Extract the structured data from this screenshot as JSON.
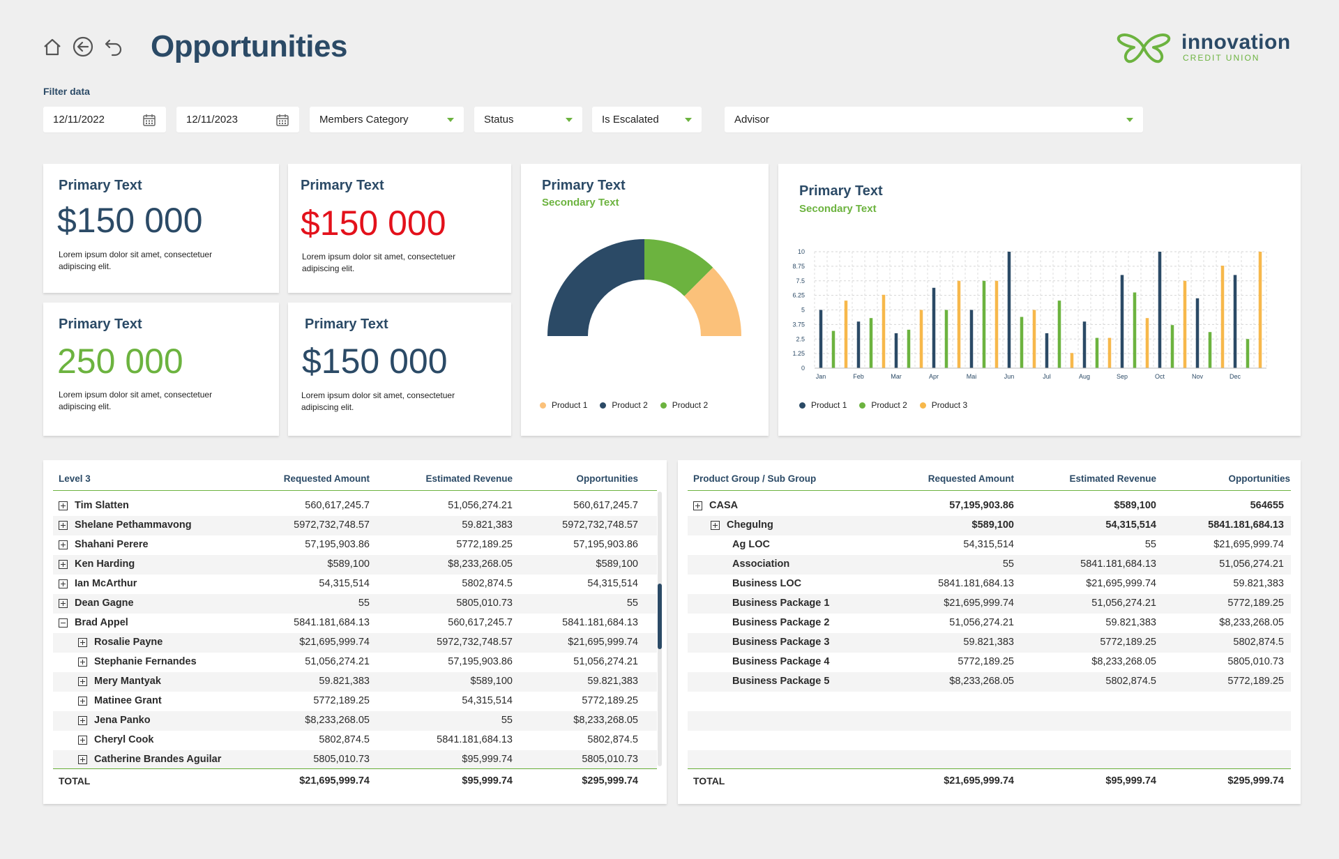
{
  "header": {
    "title": "Opportunities",
    "icons": [
      "home-icon",
      "back-icon",
      "undo-icon"
    ],
    "logo": {
      "name": "innovation",
      "sub": "CREDIT UNION"
    }
  },
  "filters": {
    "label": "Filter data",
    "date_from": "12/11/2022",
    "date_to": "12/11/2023",
    "members_category": "Members Category",
    "status": "Status",
    "is_escalated": "Is Escalated",
    "advisor": "Advisor"
  },
  "colors": {
    "navy": "#2b4a66",
    "green": "#6cb33f",
    "orange": "#f7b84b",
    "peach": "#fbc17a",
    "red": "#e3111b"
  },
  "kpis": [
    {
      "title": "Primary Text",
      "value": "$150 000",
      "desc": "Lorem ipsum dolor sit amet, consectetuer adipiscing elit.",
      "color": "#2b4a66"
    },
    {
      "title": "Primary Text",
      "value": "$150 000",
      "desc": "Lorem ipsum dolor sit amet, consectetuer adipiscing elit.",
      "color": "#e3111b"
    },
    {
      "title": "Primary Text",
      "value": "250 000",
      "desc": "Lorem ipsum dolor sit amet, consectetuer adipiscing elit.",
      "color": "#6cb33f"
    },
    {
      "title": "Primary Text",
      "value": "$150 000",
      "desc": "Lorem ipsum dolor sit amet, consectetuer adipiscing elit.",
      "color": "#2b4a66"
    }
  ],
  "donut": {
    "title": "Primary Text",
    "subtitle": "Secondary Text",
    "legend": [
      "Product 1",
      "Product 2",
      "Product 2"
    ]
  },
  "bar": {
    "title": "Primary Text",
    "subtitle": "Secondary Text",
    "legend": [
      "Product 1",
      "Product 2",
      "Product 3"
    ]
  },
  "chart_data": [
    {
      "type": "pie",
      "variant": "half-donut",
      "labels": [
        "Product 2",
        "Product 2",
        "Product 1"
      ],
      "values": [
        50,
        25,
        25
      ],
      "colors": [
        "#2b4a66",
        "#6cb33f",
        "#fbc17a"
      ]
    },
    {
      "type": "bar",
      "categories": [
        "Jan",
        "Feb",
        "Mar",
        "Apr",
        "Mai",
        "Jun",
        "Jul",
        "Aug",
        "Sep",
        "Oct",
        "Nov",
        "Dec"
      ],
      "ylim": [
        0,
        10
      ],
      "yticks": [
        "0",
        "1.25",
        "2.5",
        "3.75",
        "5",
        "6.25",
        "7.5",
        "8.75",
        "10"
      ],
      "grid": true,
      "series": [
        {
          "name": "Product 1",
          "color": "#2b4a66",
          "values": [
            5.0,
            4.0,
            3.0,
            6.9,
            5.0,
            10.0,
            3.0,
            4.0,
            8.0,
            10.0,
            6.0,
            8.0
          ]
        },
        {
          "name": "Product 2",
          "color": "#6cb33f",
          "values": [
            3.2,
            4.3,
            3.3,
            5.0,
            7.5,
            4.4,
            5.8,
            2.6,
            6.5,
            3.7,
            3.1,
            2.5
          ]
        },
        {
          "name": "Product 3",
          "color": "#f7b84b",
          "values": [
            5.8,
            6.3,
            5.0,
            7.5,
            7.5,
            5.0,
            1.3,
            2.6,
            4.3,
            7.5,
            8.8,
            10.0
          ]
        }
      ]
    }
  ],
  "table_left": {
    "headers": [
      "Level 3",
      "Requested Amount",
      "Estimated Revenue",
      "Opportunities"
    ],
    "rows": [
      {
        "name": "Tim Slatten",
        "level": 0,
        "toggle": "plus",
        "c1": "560,617,245.7",
        "c2": "51,056,274.21",
        "c3": "560,617,245.7"
      },
      {
        "name": "Shelane Pethammavong",
        "level": 0,
        "toggle": "plus",
        "c1": "5972,732,748.57",
        "c2": "59.821,383",
        "c3": "5972,732,748.57"
      },
      {
        "name": "Shahani Perere",
        "level": 0,
        "toggle": "plus",
        "c1": "57,195,903.86",
        "c2": "5772,189.25",
        "c3": "57,195,903.86"
      },
      {
        "name": "Ken Harding",
        "level": 0,
        "toggle": "plus",
        "c1": "$589,100",
        "c2": "$8,233,268.05",
        "c3": "$589,100"
      },
      {
        "name": "Ian McArthur",
        "level": 0,
        "toggle": "plus",
        "c1": "54,315,514",
        "c2": "5802,874.5",
        "c3": "54,315,514"
      },
      {
        "name": "Dean Gagne",
        "level": 0,
        "toggle": "plus",
        "c1": "55",
        "c2": "5805,010.73",
        "c3": "55"
      },
      {
        "name": "Brad Appel",
        "level": 0,
        "toggle": "minus",
        "c1": "5841.181,684.13",
        "c2": "560,617,245.7",
        "c3": "5841.181,684.13"
      },
      {
        "name": "Rosalie Payne",
        "level": 1,
        "toggle": "plus",
        "c1": "$21,695,999.74",
        "c2": "5972,732,748.57",
        "c3": "$21,695,999.74"
      },
      {
        "name": "Stephanie Fernandes",
        "level": 1,
        "toggle": "plus",
        "c1": "51,056,274.21",
        "c2": "57,195,903.86",
        "c3": "51,056,274.21"
      },
      {
        "name": "Mery Mantyak",
        "level": 1,
        "toggle": "plus",
        "c1": "59.821,383",
        "c2": "$589,100",
        "c3": "59.821,383"
      },
      {
        "name": "Matinee Grant",
        "level": 1,
        "toggle": "plus",
        "c1": "5772,189.25",
        "c2": "54,315,514",
        "c3": "5772,189.25"
      },
      {
        "name": "Jena Panko",
        "level": 1,
        "toggle": "plus",
        "c1": "$8,233,268.05",
        "c2": "55",
        "c3": "$8,233,268.05"
      },
      {
        "name": "Cheryl Cook",
        "level": 1,
        "toggle": "plus",
        "c1": "5802,874.5",
        "c2": "5841.181,684.13",
        "c3": "5802,874.5"
      },
      {
        "name": "Catherine Brandes Aguilar",
        "level": 1,
        "toggle": "plus",
        "c1": "5805,010.73",
        "c2": "$95,999.74",
        "c3": "5805,010.73"
      }
    ],
    "total": {
      "label": "TOTAL",
      "c1": "$21,695,999.74",
      "c2": "$95,999.74",
      "c3": "$295,999.74"
    }
  },
  "table_right": {
    "headers": [
      "Product Group / Sub Group",
      "Requested Amount",
      "Estimated Revenue",
      "Opportunities"
    ],
    "rows": [
      {
        "name": "CASA",
        "level": 0,
        "toggle": "plus",
        "bold": true,
        "c1": "57,195,903.86",
        "c2": "$589,100",
        "c3": "564655"
      },
      {
        "name": "Chegulng",
        "level": 1,
        "toggle": "plus",
        "bold": true,
        "c1": "$589,100",
        "c2": "54,315,514",
        "c3": "5841.181,684.13"
      },
      {
        "name": "Ag LOC",
        "level": 2,
        "toggle": "",
        "bold": false,
        "c1": "54,315,514",
        "c2": "55",
        "c3": "$21,695,999.74"
      },
      {
        "name": "Association",
        "level": 2,
        "toggle": "",
        "bold": false,
        "c1": "55",
        "c2": "5841.181,684.13",
        "c3": "51,056,274.21"
      },
      {
        "name": "Business LOC",
        "level": 2,
        "toggle": "",
        "bold": false,
        "c1": "5841.181,684.13",
        "c2": "$21,695,999.74",
        "c3": "59.821,383"
      },
      {
        "name": "Business Package 1",
        "level": 2,
        "toggle": "",
        "bold": false,
        "c1": "$21,695,999.74",
        "c2": "51,056,274.21",
        "c3": "5772,189.25"
      },
      {
        "name": "Business Package 2",
        "level": 2,
        "toggle": "",
        "bold": false,
        "c1": "51,056,274.21",
        "c2": "59.821,383",
        "c3": "$8,233,268.05"
      },
      {
        "name": "Business Package 3",
        "level": 2,
        "toggle": "",
        "bold": false,
        "c1": "59.821,383",
        "c2": "5772,189.25",
        "c3": "5802,874.5"
      },
      {
        "name": "Business Package 4",
        "level": 2,
        "toggle": "",
        "bold": false,
        "c1": "5772,189.25",
        "c2": "$8,233,268.05",
        "c3": "5805,010.73"
      },
      {
        "name": "Business Package 5",
        "level": 2,
        "toggle": "",
        "bold": false,
        "c1": "$8,233,268.05",
        "c2": "5802,874.5",
        "c3": "5772,189.25"
      }
    ],
    "total": {
      "label": "TOTAL",
      "c1": "$21,695,999.74",
      "c2": "$95,999.74",
      "c3": "$295,999.74"
    }
  }
}
